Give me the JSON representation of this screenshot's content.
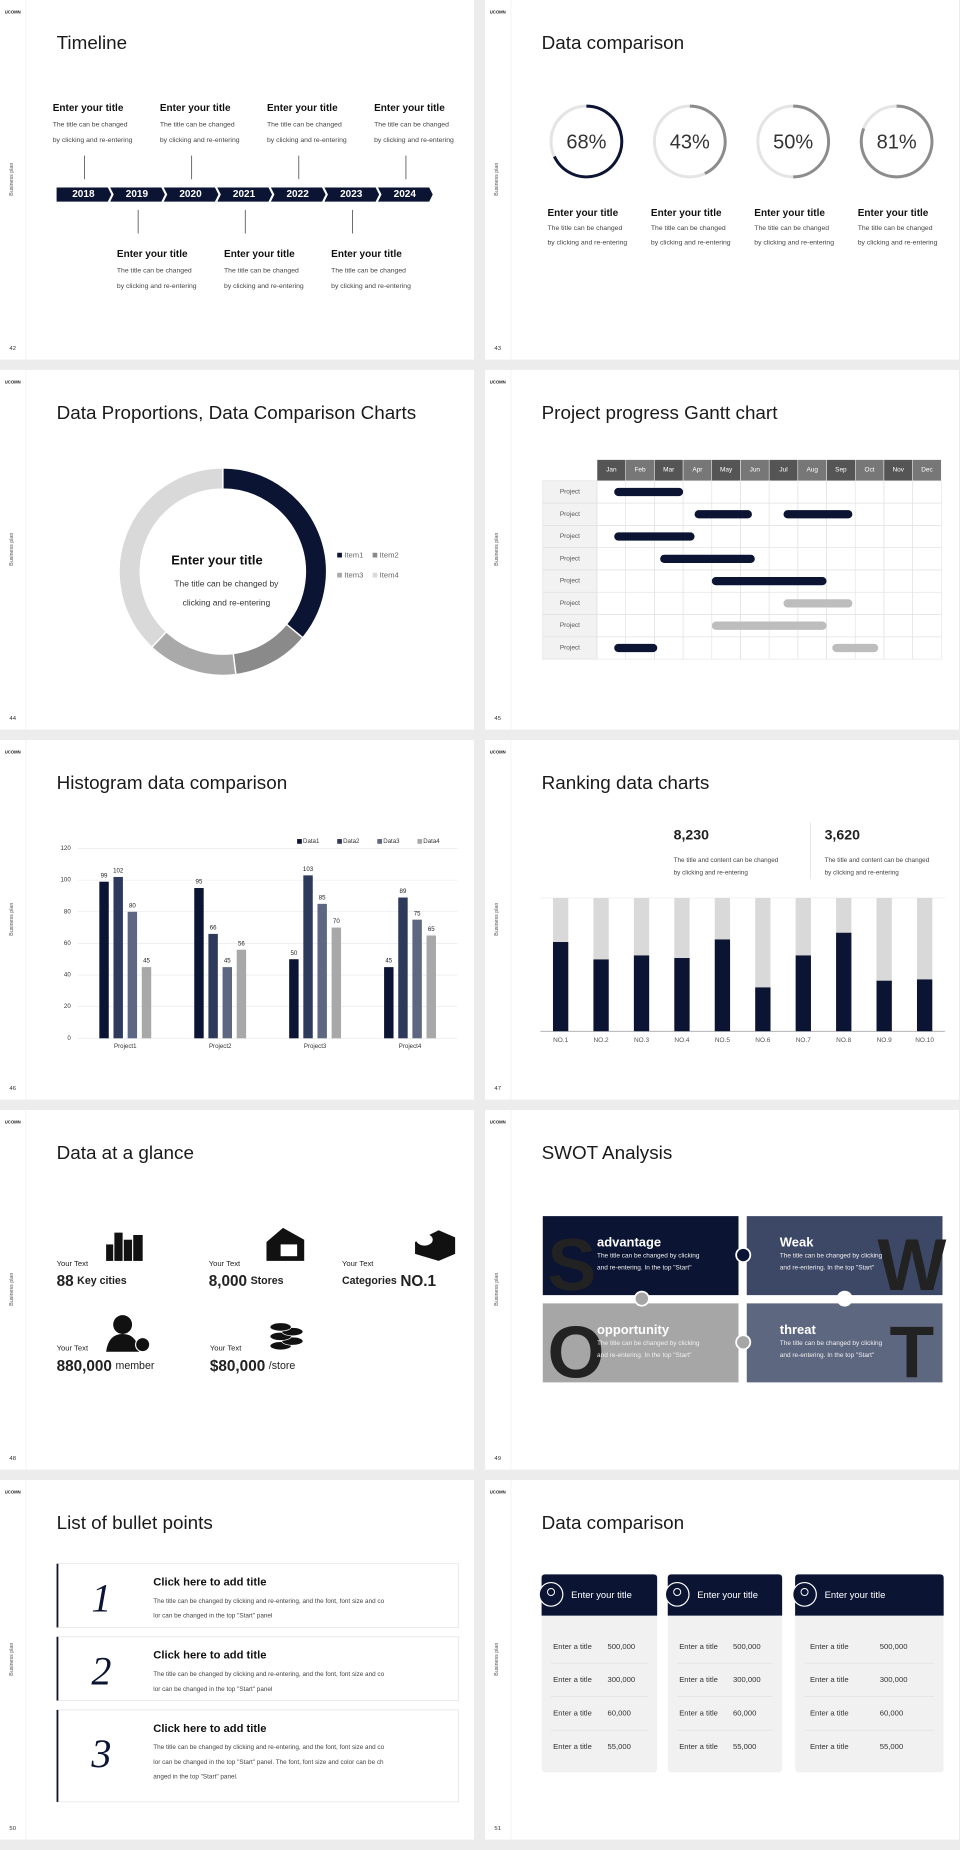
{
  "brand": "UCOMN",
  "side_label": "Business plan",
  "slides": [
    {
      "type": "timeline",
      "page": 42,
      "title": "Timeline",
      "years": [
        "2018",
        "2019",
        "2020",
        "2021",
        "2022",
        "2023",
        "2024"
      ],
      "top_events": [
        {
          "title": "Enter your title",
          "desc": [
            "The title can be changed",
            "by clicking and re-entering"
          ]
        },
        {
          "title": "Enter your title",
          "desc": [
            "The title can be changed",
            "by clicking and re-entering"
          ]
        },
        {
          "title": "Enter your title",
          "desc": [
            "The title can be changed",
            "by clicking and re-entering"
          ]
        },
        {
          "title": "Enter your title",
          "desc": [
            "The title can be changed",
            "by clicking and re-entering"
          ]
        }
      ],
      "bottom_events": [
        {
          "title": "Enter your title",
          "desc": [
            "The title can be changed",
            "by clicking and re-entering"
          ]
        },
        {
          "title": "Enter your title",
          "desc": [
            "The title can be changed",
            "by clicking and re-entering"
          ]
        },
        {
          "title": "Enter your title",
          "desc": [
            "The title can be changed",
            "by clicking and re-entering"
          ]
        }
      ]
    },
    {
      "type": "rings",
      "page": 43,
      "title": "Data comparison",
      "items": [
        {
          "value": 68,
          "label": "68%",
          "color": "#0b1533",
          "title": "Enter your title",
          "desc": [
            "The title can be changed",
            "by clicking and re-entering"
          ]
        },
        {
          "value": 43,
          "label": "43%",
          "color": "#8c8c8c",
          "title": "Enter your title",
          "desc": [
            "The title can be changed",
            "by clicking and re-entering"
          ]
        },
        {
          "value": 50,
          "label": "50%",
          "color": "#8c8c8c",
          "title": "Enter your title",
          "desc": [
            "The title can be changed",
            "by clicking and re-entering"
          ]
        },
        {
          "value": 81,
          "label": "81%",
          "color": "#8c8c8c",
          "title": "Enter your title",
          "desc": [
            "The title can be changed",
            "by clicking and re-entering"
          ]
        }
      ]
    },
    {
      "type": "pie",
      "page": 44,
      "title": "Data Proportions, Data Comparison Charts",
      "chart": {
        "type": "pie",
        "categories": [
          "Item1",
          "Item2",
          "Item3",
          "Item4"
        ],
        "values": [
          36,
          12,
          14,
          38
        ],
        "colors": [
          "#0b1533",
          "#8a8a8a",
          "#a9a9a9",
          "#d9d9d9"
        ]
      },
      "center_title": "Enter your title",
      "center_desc": [
        "The title can be changed by",
        "clicking and re-entering"
      ]
    },
    {
      "type": "gantt",
      "page": 45,
      "title": "Project progress Gantt chart",
      "months": [
        "Jan",
        "Feb",
        "Mar",
        "Apr",
        "May",
        "Jun",
        "Jul",
        "Aug",
        "Sep",
        "Oct",
        "Nov",
        "Dec"
      ],
      "rows": [
        {
          "label": "Project",
          "bars": [
            {
              "start": 0.6,
              "end": 3,
              "color": "#0b1533"
            }
          ]
        },
        {
          "label": "Project",
          "bars": [
            {
              "start": 3.4,
              "end": 5.4,
              "color": "#0b1533"
            },
            {
              "start": 6.5,
              "end": 8.9,
              "color": "#0b1533"
            }
          ]
        },
        {
          "label": "Project",
          "bars": [
            {
              "start": 0.6,
              "end": 3.4,
              "color": "#0b1533"
            }
          ]
        },
        {
          "label": "Project",
          "bars": [
            {
              "start": 2.2,
              "end": 5.5,
              "color": "#0b1533"
            }
          ]
        },
        {
          "label": "Project",
          "bars": [
            {
              "start": 4,
              "end": 8,
              "color": "#0b1533"
            }
          ]
        },
        {
          "label": "Project",
          "bars": [
            {
              "start": 6.5,
              "end": 8.9,
              "color": "#bdbdbd"
            }
          ]
        },
        {
          "label": "Project",
          "bars": [
            {
              "start": 4,
              "end": 8,
              "color": "#bdbdbd"
            }
          ]
        },
        {
          "label": "Project",
          "bars": [
            {
              "start": 0.6,
              "end": 2.1,
              "color": "#0b1533"
            },
            {
              "start": 8.2,
              "end": 9.8,
              "color": "#bdbdbd"
            }
          ]
        }
      ]
    },
    {
      "type": "bar",
      "page": 46,
      "title": "Histogram data comparison",
      "chart": {
        "type": "bar",
        "categories": [
          "Project1",
          "Project2",
          "Project3",
          "Project4"
        ],
        "series": [
          {
            "name": "Data1",
            "color": "#0b1533",
            "values": [
              99,
              95,
              50,
              45
            ]
          },
          {
            "name": "Data2",
            "color": "#2e3a5c",
            "values": [
              102,
              66,
              103,
              89
            ]
          },
          {
            "name": "Data3",
            "color": "#5d6782",
            "values": [
              80,
              45,
              85,
              75
            ]
          },
          {
            "name": "Data4",
            "color": "#a8a8a8",
            "values": [
              45,
              56,
              70,
              65
            ]
          }
        ],
        "ylim": [
          0,
          120
        ],
        "yticks": [
          0,
          20,
          40,
          60,
          80,
          100,
          120
        ],
        "grid": true,
        "legend": "top-right"
      }
    },
    {
      "type": "stacked",
      "page": 47,
      "title": "Ranking data charts",
      "stats": [
        {
          "value": "8,230",
          "color": "#111111",
          "desc": [
            "The title and content can be changed",
            "by clicking and re-entering"
          ]
        },
        {
          "value": "3,620",
          "color": "#bbbbbb",
          "desc": [
            "The title and content can be changed",
            "by clicking and re-entering"
          ]
        }
      ],
      "chart": {
        "type": "stacked-bar",
        "categories": [
          "NO.1",
          "NO.2",
          "NO.3",
          "NO.4",
          "NO.5",
          "NO.6",
          "NO.7",
          "NO.8",
          "NO.9",
          "NO.10"
        ],
        "series": [
          {
            "color": "#0b1533",
            "values": [
              67,
              54,
              57,
              55,
              69,
              33,
              57,
              74,
              38,
              39
            ]
          },
          {
            "color": "#d9d9d9",
            "values": [
              33,
              46,
              43,
              45,
              31,
              67,
              43,
              26,
              62,
              61
            ]
          }
        ],
        "ylim": [
          0,
          100
        ]
      }
    },
    {
      "type": "glance",
      "page": 48,
      "title": "Data at a glance",
      "items": [
        {
          "label": "Your Text",
          "value": "88",
          "unit": "Key cities"
        },
        {
          "label": "Your Text",
          "value": "8,000",
          "unit": "Stores"
        },
        {
          "label": "Your Text",
          "prefix": "Categories",
          "value": "NO.1"
        },
        {
          "label": "Your Text",
          "value": "880,000",
          "unit": "member"
        },
        {
          "label": "Your Text",
          "value": "$80,000",
          "unit": "/store"
        }
      ]
    },
    {
      "type": "swot",
      "page": 49,
      "title": "SWOT Analysis",
      "quadrants": [
        {
          "letter": "S",
          "title": "advantage",
          "desc": [
            "The title can be changed by clicking",
            "and re-entering. In the top \"Start\""
          ]
        },
        {
          "letter": "W",
          "title": "Weak",
          "desc": [
            "The title can be changed by clicking",
            "and re-entering. In the top \"Start\""
          ]
        },
        {
          "letter": "O",
          "title": "opportunity",
          "desc": [
            "The title can be changed by clicking",
            "and re-entering. In the top \"Start\""
          ]
        },
        {
          "letter": "T",
          "title": "threat",
          "desc": [
            "The title can be changed by clicking",
            "and re-entering. In the top \"Start\""
          ]
        }
      ]
    },
    {
      "type": "bullets",
      "page": 50,
      "title": "List of bullet points",
      "items": [
        {
          "number": "1",
          "title": "Click here to add title",
          "desc": [
            "The title can be changed by clicking and re-entering, and the font, font size and co",
            "lor can be changed in the top \"Start\" panel"
          ]
        },
        {
          "number": "2",
          "title": "Click here to add title",
          "desc": [
            "The title can be changed by clicking and re-entering, and the font, font size and co",
            "lor can be changed in the top \"Start\" panel"
          ]
        },
        {
          "number": "3",
          "title": "Click here to add title",
          "desc": [
            "The title can be changed by clicking and re-entering, and the font, font size and co",
            "lor can be changed in the top \"Start\" panel. The font, font size and color can be ch",
            "anged in the top \"Start\" panel."
          ]
        }
      ]
    },
    {
      "type": "cards",
      "page": 51,
      "title": "Data comparison",
      "cards": [
        {
          "title": "Enter your title",
          "rows": [
            {
              "label": "Enter a title",
              "value": "500,000"
            },
            {
              "label": "Enter a title",
              "value": "300,000"
            },
            {
              "label": "Enter a title",
              "value": "60,000"
            },
            {
              "label": "Enter a title",
              "value": "55,000"
            }
          ]
        },
        {
          "title": "Enter your title",
          "rows": [
            {
              "label": "Enter a title",
              "value": "500,000"
            },
            {
              "label": "Enter a title",
              "value": "300,000"
            },
            {
              "label": "Enter a title",
              "value": "60,000"
            },
            {
              "label": "Enter a title",
              "value": "55,000"
            }
          ]
        },
        {
          "title": "Enter your title",
          "rows": [
            {
              "label": "Enter a title",
              "value": "500,000"
            },
            {
              "label": "Enter a title",
              "value": "300,000"
            },
            {
              "label": "Enter a title",
              "value": "60,000"
            },
            {
              "label": "Enter a title",
              "value": "55,000"
            }
          ]
        }
      ]
    }
  ]
}
